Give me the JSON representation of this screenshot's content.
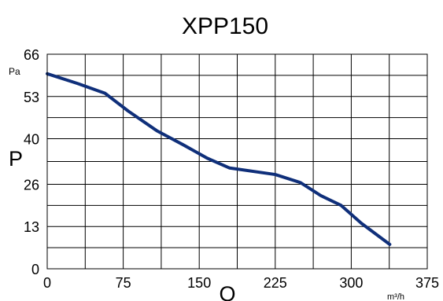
{
  "chart_data": {
    "type": "line",
    "title": "XPP150",
    "xlabel": "Q",
    "ylabel": "P",
    "x_unit": "m³/h",
    "y_unit": "Pa",
    "xlim": [
      0,
      375
    ],
    "ylim": [
      0,
      66
    ],
    "x_ticks": [
      0,
      75,
      150,
      225,
      300,
      375
    ],
    "y_ticks": [
      0,
      13,
      26,
      40,
      53,
      66
    ],
    "x_tick_labels": [
      "0",
      "75",
      "150",
      "225",
      "300",
      "375"
    ],
    "y_tick_labels": [
      "0",
      "13",
      "26",
      "40",
      "53",
      "66"
    ],
    "x_minor_gridlines": [
      37.5,
      112.5,
      187.5,
      262.5,
      337.5
    ],
    "y_minor_gridlines": [
      6.5,
      19.5,
      33,
      46.5,
      59.5
    ],
    "grid": true,
    "series": [
      {
        "color": "#0f2f7a",
        "points": [
          [
            0,
            60
          ],
          [
            30,
            57
          ],
          [
            57,
            54
          ],
          [
            80,
            48.5
          ],
          [
            108,
            42.5
          ],
          [
            135,
            38
          ],
          [
            158,
            34
          ],
          [
            180,
            31
          ],
          [
            225,
            29
          ],
          [
            250,
            26.5
          ],
          [
            270,
            22.5
          ],
          [
            290,
            19.5
          ],
          [
            310,
            14
          ],
          [
            338,
            7.5
          ]
        ]
      }
    ]
  }
}
